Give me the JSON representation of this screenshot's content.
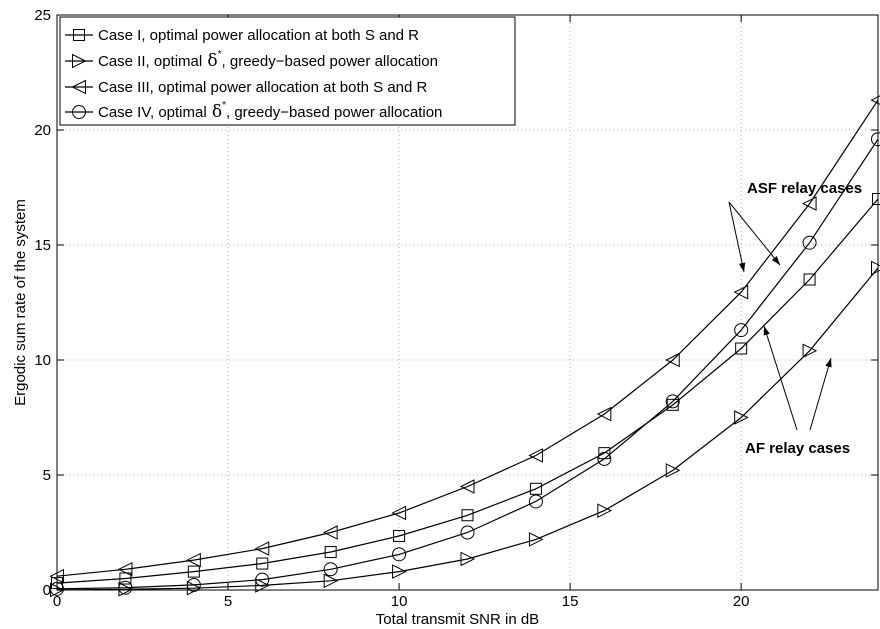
{
  "chart_data": {
    "type": "line",
    "xlabel": "Total transmit SNR in dB",
    "ylabel": "Ergodic sum rate of the system",
    "xlim": [
      0,
      24
    ],
    "ylim": [
      0,
      25
    ],
    "xticks": [
      0,
      5,
      10,
      15,
      20
    ],
    "yticks": [
      0,
      5,
      10,
      15,
      20,
      25
    ],
    "grid": true,
    "legend_position": "top-left",
    "x": [
      0,
      2,
      4,
      6,
      8,
      10,
      12,
      14,
      16,
      18,
      20,
      22,
      24
    ],
    "series": [
      {
        "name": "Case I, optimal power allocation at both S and R",
        "marker": "square",
        "values": [
          0.3,
          0.5,
          0.8,
          1.15,
          1.65,
          2.35,
          3.25,
          4.4,
          5.95,
          8.05,
          10.5,
          13.5,
          17.0
        ]
      },
      {
        "name": "Case II, optimal δ*, greedy−based power allocation",
        "marker": "triangle-right",
        "values": [
          0.0,
          0.03,
          0.08,
          0.2,
          0.4,
          0.8,
          1.35,
          2.2,
          3.45,
          5.2,
          7.5,
          10.4,
          14.0
        ]
      },
      {
        "name": "Case III, optimal power allocation at both S and R",
        "marker": "triangle-left",
        "values": [
          0.6,
          0.9,
          1.3,
          1.8,
          2.5,
          3.35,
          4.5,
          5.85,
          7.65,
          10.0,
          12.95,
          16.8,
          21.3
        ]
      },
      {
        "name": "Case IV, optimal δ*, greedy−based power allocation",
        "marker": "circle",
        "values": [
          0.05,
          0.1,
          0.22,
          0.45,
          0.9,
          1.55,
          2.5,
          3.85,
          5.7,
          8.2,
          11.3,
          15.1,
          19.6
        ]
      }
    ],
    "legend": {
      "entries": [
        {
          "prefix": "Case I, optimal power allocation at both S and R",
          "delta": "",
          "suffix": ""
        },
        {
          "prefix": "Case II, optimal ",
          "delta": "δ",
          "sup": "*",
          "suffix": ", greedy−based power allocation"
        },
        {
          "prefix": "Case III, optimal power allocation at both S and R",
          "delta": "",
          "suffix": ""
        },
        {
          "prefix": "Case IV, optimal ",
          "delta": "δ",
          "sup": "*",
          "suffix": ", greedy−based power allocation"
        }
      ]
    },
    "annotations": [
      {
        "text": "ASF relay cases"
      },
      {
        "text": "AF relay cases"
      }
    ]
  }
}
